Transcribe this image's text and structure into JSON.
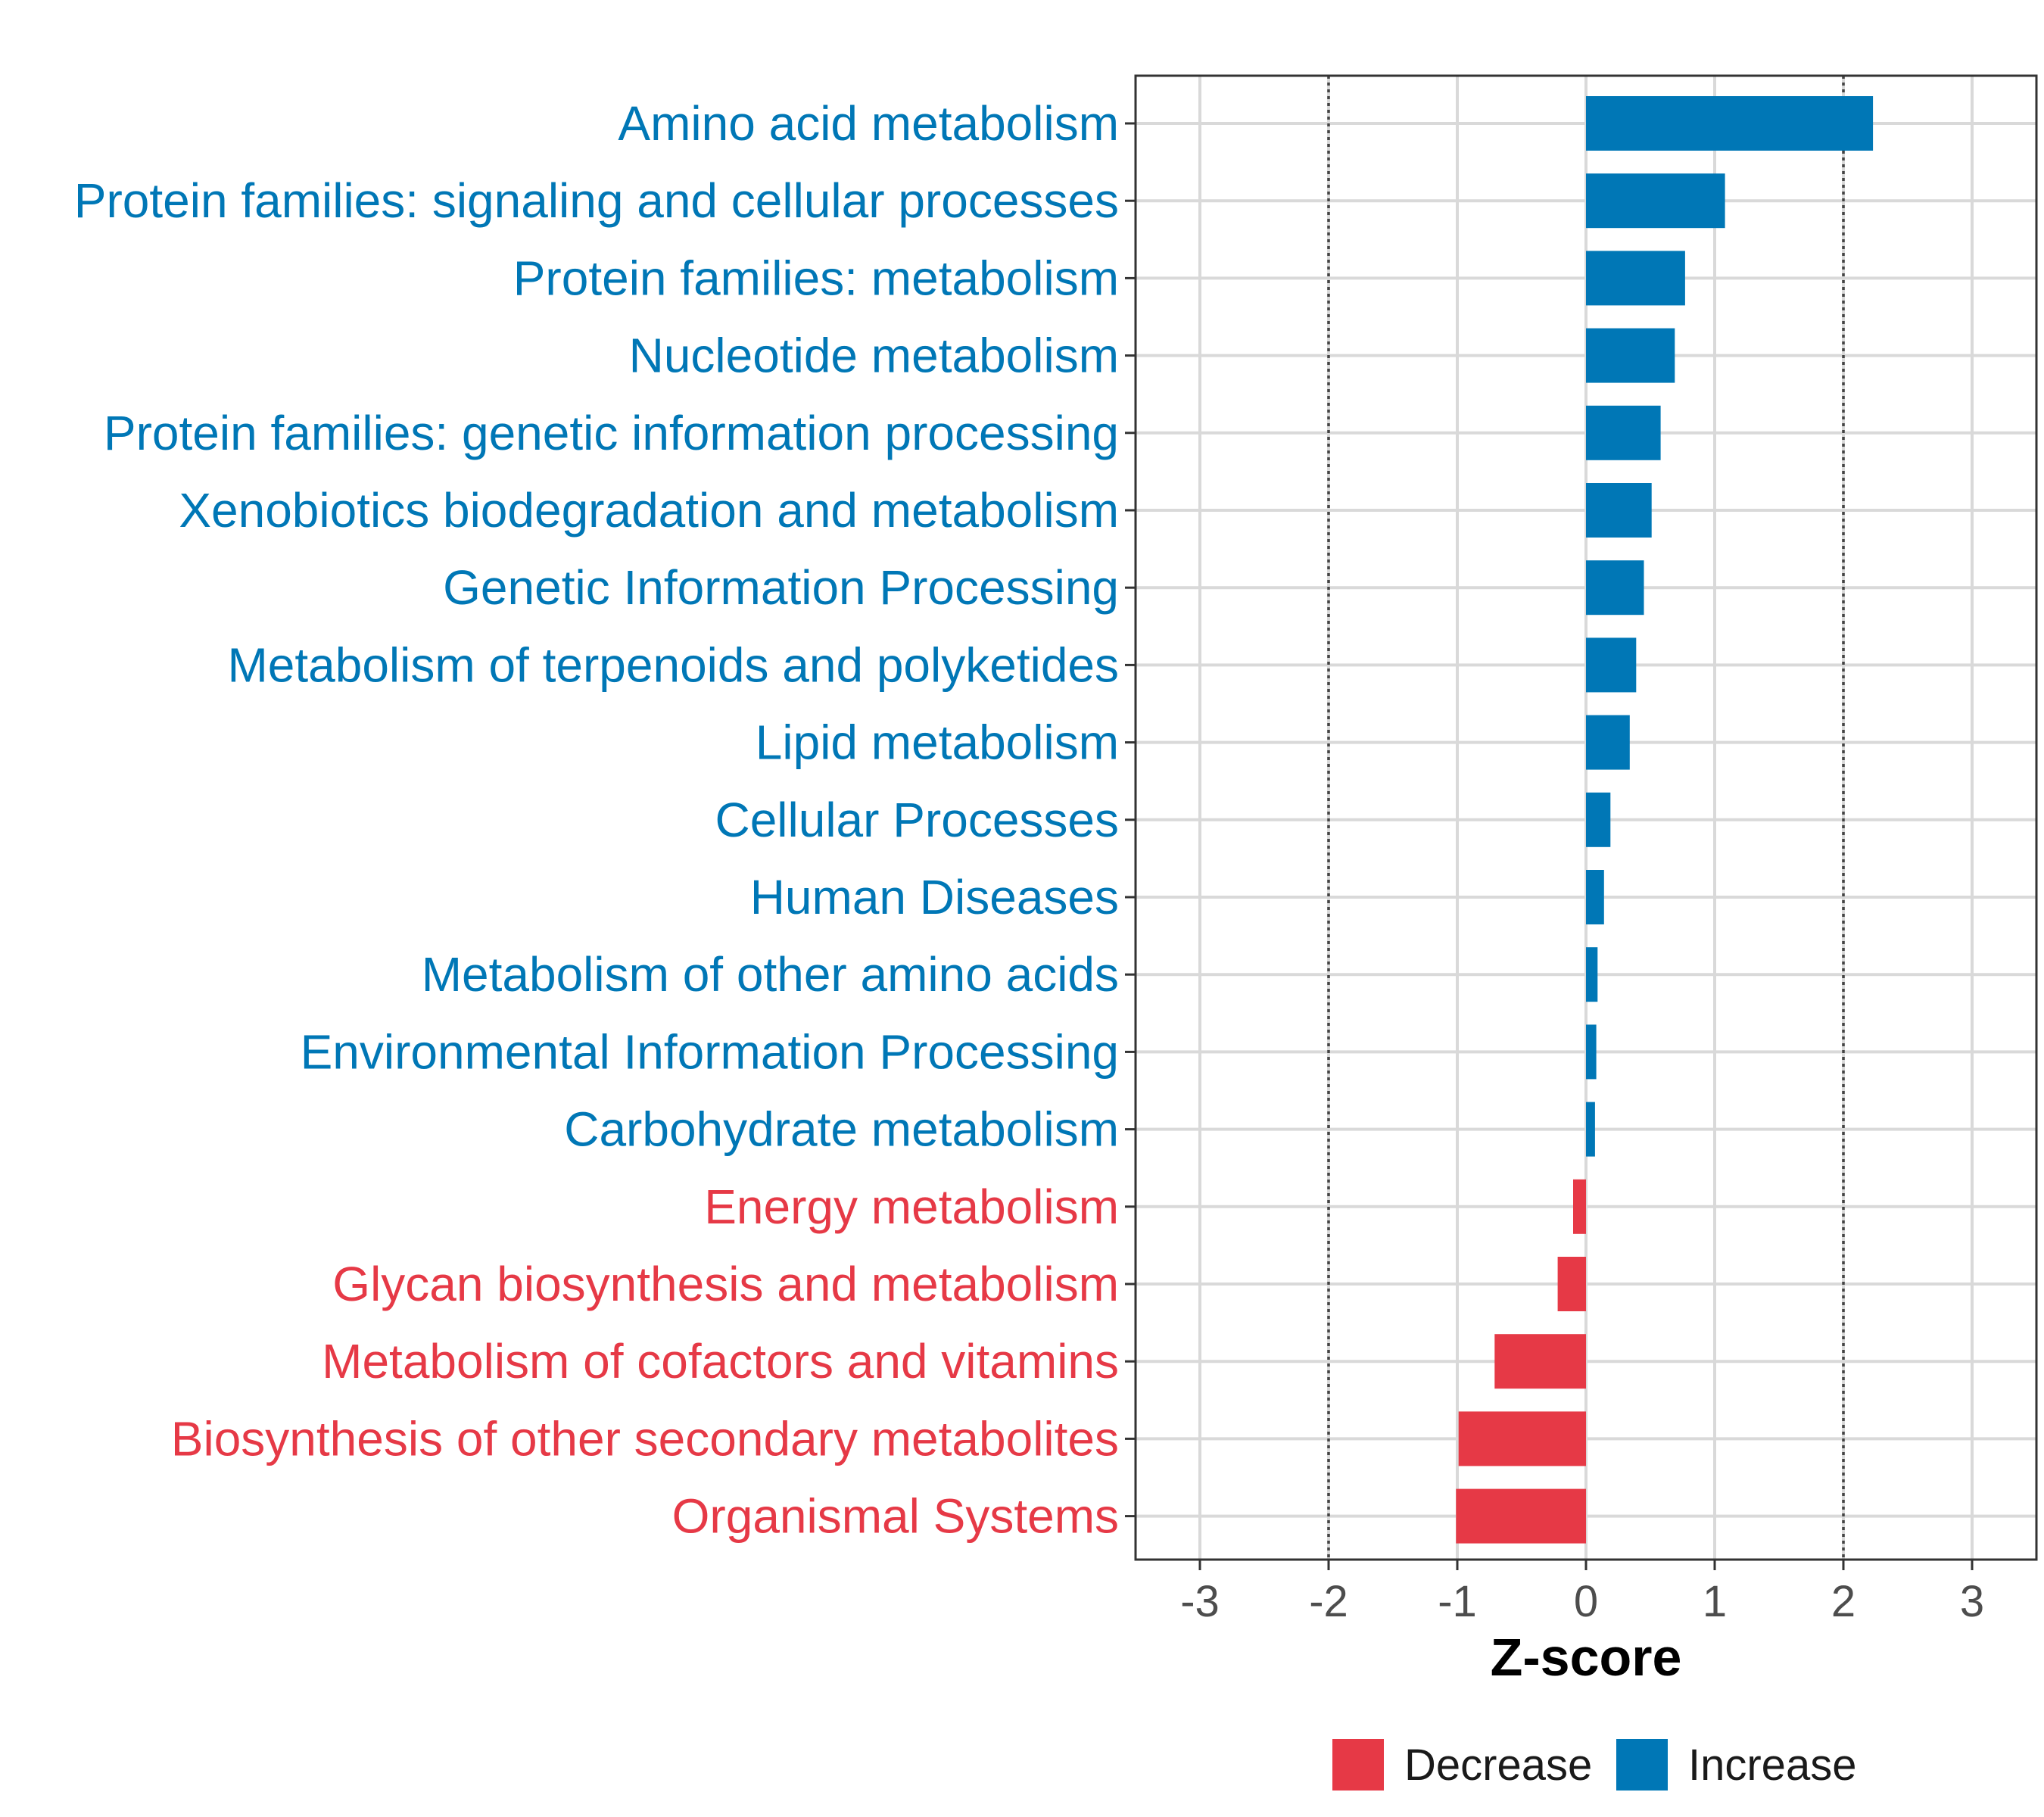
{
  "chart_data": {
    "type": "bar",
    "orientation": "horizontal",
    "xlabel": "Z-score",
    "xlim": [
      -3.5,
      3.5
    ],
    "xticks": [
      -3,
      -2,
      -1,
      0,
      1,
      2,
      3
    ],
    "xtick_labels": [
      "-3",
      "-2",
      "-1",
      "0",
      "1",
      "2",
      "3"
    ],
    "reference_lines": [
      -2,
      2
    ],
    "grid": true,
    "colors": {
      "Decrease": "#e63946",
      "Increase": "#0077b6"
    },
    "categories": [
      "Amino acid metabolism",
      "Protein families: signaling and cellular processes",
      "Protein families: metabolism",
      "Nucleotide metabolism",
      "Protein families: genetic information processing",
      "Xenobiotics biodegradation and metabolism",
      "Genetic Information Processing",
      "Metabolism of terpenoids and polyketides",
      "Lipid metabolism",
      "Cellular Processes",
      "Human Diseases",
      "Metabolism of other amino acids",
      "Environmental Information Processing",
      "Carbohydrate metabolism",
      "Energy metabolism",
      "Glycan biosynthesis and metabolism",
      "Metabolism of cofactors and vitamins",
      "Biosynthesis of other secondary metabolites",
      "Organismal Systems"
    ],
    "values": [
      2.23,
      1.08,
      0.77,
      0.69,
      0.58,
      0.51,
      0.45,
      0.39,
      0.34,
      0.19,
      0.14,
      0.09,
      0.08,
      0.07,
      -0.1,
      -0.22,
      -0.71,
      -0.99,
      -1.01
    ],
    "groups": [
      "Increase",
      "Increase",
      "Increase",
      "Increase",
      "Increase",
      "Increase",
      "Increase",
      "Increase",
      "Increase",
      "Increase",
      "Increase",
      "Increase",
      "Increase",
      "Increase",
      "Decrease",
      "Decrease",
      "Decrease",
      "Decrease",
      "Decrease"
    ],
    "legend": {
      "position": "bottom",
      "entries": [
        {
          "label": "Decrease",
          "color": "#e63946"
        },
        {
          "label": "Increase",
          "color": "#0077b6"
        }
      ]
    }
  }
}
